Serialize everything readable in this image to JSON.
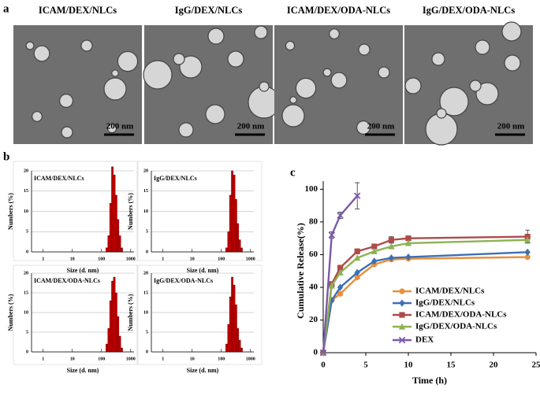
{
  "figure": {
    "panel_labels": [
      "a",
      "b",
      "c"
    ],
    "tem_images": [
      {
        "title": "ICAM/DEX/NLCs",
        "scale_bar": "200 nm"
      },
      {
        "title": "IgG/DEX/NLCs",
        "scale_bar": "200 nm"
      },
      {
        "title": "ICAM/DEX/ODA-NLCs",
        "scale_bar": "200 nm"
      },
      {
        "title": "IgG/DEX/ODA-NLCs",
        "scale_bar": "200 nm"
      }
    ]
  },
  "chart_data": [
    {
      "type": "histogram",
      "title": "ICAM/DEX/NLCs",
      "xlabel": "Size (d. nm)",
      "ylabel": "Numbers (%)",
      "xscale": "log",
      "bins": [
        141,
        164,
        190,
        220,
        255,
        295,
        342,
        396,
        459,
        531
      ],
      "values": [
        1,
        4,
        12,
        21,
        19,
        14,
        8,
        4,
        1
      ],
      "color": "#c00000",
      "xlim": [
        0.4,
        1300
      ],
      "xticks": [
        1,
        10,
        100,
        1000
      ],
      "ylim": [
        0,
        20
      ],
      "yticks": [
        0,
        5,
        10,
        15,
        20
      ],
      "grid": true
    },
    {
      "type": "histogram",
      "title": "IgG/DEX/NLCs",
      "xlabel": "Size (d. nm)",
      "ylabel": "Numbers (%)",
      "xscale": "log",
      "bins": [
        141,
        164,
        190,
        220,
        255,
        295,
        342,
        396,
        459,
        531
      ],
      "values": [
        1,
        5,
        14,
        20,
        19,
        13,
        7,
        3,
        1
      ],
      "color": "#c00000",
      "xlim": [
        0.4,
        1300
      ],
      "xticks": [
        1,
        10,
        100,
        1000
      ],
      "ylim": [
        0,
        20
      ],
      "yticks": [
        0,
        5,
        10,
        15,
        20
      ],
      "grid": true
    },
    {
      "type": "histogram",
      "title": "ICAM/DEX/ODA-NLCs",
      "xlabel": "Size (d. nm)",
      "ylabel": "Numbers (%)",
      "xscale": "log",
      "bins": [
        141,
        164,
        190,
        220,
        255,
        295,
        342,
        396,
        459,
        531
      ],
      "values": [
        2,
        6,
        13,
        18,
        19,
        15,
        9,
        4,
        1
      ],
      "color": "#c00000",
      "xlim": [
        0.4,
        1300
      ],
      "xticks": [
        1,
        10,
        100,
        1000
      ],
      "ylim": [
        0,
        20
      ],
      "yticks": [
        0,
        5,
        10,
        15,
        20
      ],
      "grid": true
    },
    {
      "type": "histogram",
      "title": "IgG/DEX/ODA-NLCs",
      "xlabel": "Size (d. nm)",
      "ylabel": "Numbers (%)",
      "xscale": "log",
      "bins": [
        141,
        164,
        190,
        220,
        255,
        295,
        342,
        396,
        459,
        531
      ],
      "values": [
        2,
        7,
        14,
        19,
        17,
        12,
        6,
        3,
        1
      ],
      "color": "#c00000",
      "xlim": [
        0.4,
        1300
      ],
      "xticks": [
        1,
        10,
        100,
        1000
      ],
      "ylim": [
        0,
        20
      ],
      "yticks": [
        0,
        5,
        10,
        15,
        20
      ],
      "grid": true
    },
    {
      "type": "line",
      "xlabel": "Time (h)",
      "ylabel": "Cumulative Release(%)",
      "xlim": [
        0,
        25
      ],
      "xticks": [
        0,
        5,
        10,
        15,
        20,
        25
      ],
      "ylim": [
        0,
        105
      ],
      "yticks": [
        0,
        20,
        40,
        60,
        80,
        100
      ],
      "series": [
        {
          "name": "ICAM/DEX/NLCs",
          "color": "#e8903c",
          "marker": "circle",
          "x": [
            0,
            1,
            2,
            4,
            6,
            8,
            10,
            24
          ],
          "values": [
            0,
            32,
            36,
            46,
            54,
            57,
            57.5,
            58.5
          ]
        },
        {
          "name": "IgG/DEX/NLCs",
          "color": "#3d6fb4",
          "marker": "diamond",
          "x": [
            0,
            1,
            2,
            4,
            6,
            8,
            10,
            24
          ],
          "values": [
            0,
            32,
            40,
            49,
            56,
            58,
            58.5,
            61.5
          ]
        },
        {
          "name": "ICAM/DEX/ODA-NLCs",
          "color": "#b04a4a",
          "marker": "square",
          "x": [
            0,
            1,
            2,
            4,
            6,
            8,
            10,
            24
          ],
          "values": [
            0,
            42,
            52,
            62,
            65,
            69,
            70,
            71
          ],
          "errors": [
            0,
            1,
            1,
            1.5,
            1.5,
            2,
            1,
            4
          ]
        },
        {
          "name": "IgG/DEX/ODA-NLCs",
          "color": "#8db255",
          "marker": "triangle",
          "x": [
            0,
            1,
            2,
            4,
            6,
            8,
            10,
            24
          ],
          "values": [
            0,
            41,
            49,
            58,
            62,
            65,
            67,
            69
          ]
        },
        {
          "name": "DEX",
          "color": "#7a5aa8",
          "marker": "x",
          "x": [
            0,
            1,
            2,
            4
          ],
          "values": [
            0,
            72,
            84,
            96
          ],
          "errors": [
            0,
            2,
            2,
            8
          ]
        }
      ]
    }
  ]
}
